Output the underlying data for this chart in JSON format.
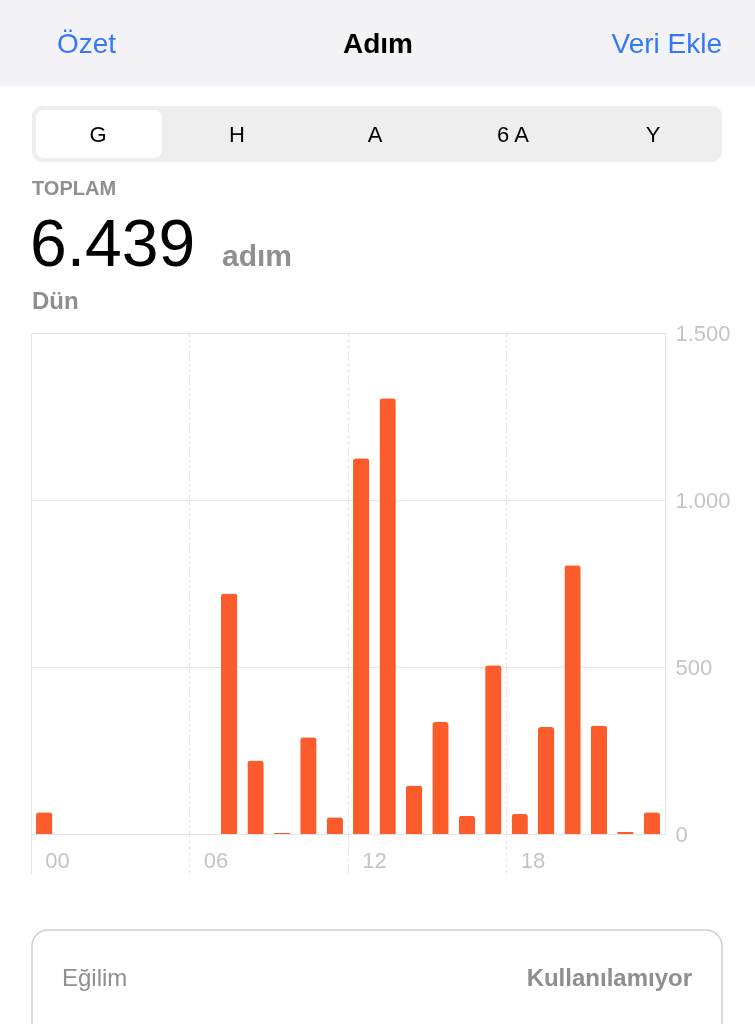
{
  "chart_data": {
    "type": "bar",
    "title": "Adım",
    "categories": [
      "00",
      null,
      null,
      null,
      null,
      null,
      "06",
      null,
      null,
      null,
      null,
      null,
      "12",
      null,
      null,
      null,
      null,
      null,
      "18",
      null,
      null,
      null,
      null,
      null
    ],
    "values": [
      65,
      null,
      null,
      null,
      null,
      null,
      null,
      720,
      220,
      4,
      290,
      50,
      1125,
      1305,
      145,
      335,
      55,
      505,
      60,
      320,
      805,
      325,
      7,
      65
    ],
    "color": "#fc5c2b",
    "ylim": [
      0,
      1500
    ],
    "yticks": [
      0,
      500,
      {
        "value": 1000,
        "label": "1.000"
      },
      {
        "value": 1500,
        "label": "1.500"
      }
    ],
    "grid": true,
    "annotations": [
      "Özet",
      "Veri Ekle",
      "G",
      "H",
      "A",
      "6 A",
      "Y",
      "TOPLAM",
      "6.439",
      "adım",
      "Dün",
      "Eğilim",
      "Kullanılamıyor"
    ]
  }
}
